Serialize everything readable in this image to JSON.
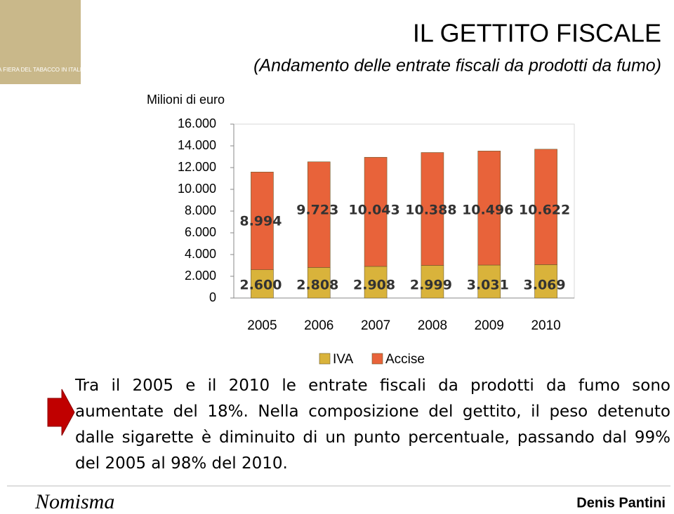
{
  "logo_text": "LA FIERA DEL TABACCO IN ITALIA",
  "chart_data": {
    "type": "stacked_bar",
    "title": "IL GETTITO FISCALE",
    "subtitle": "(Andamento delle entrate fiscali da prodotti da fumo)",
    "ylabel": "Milioni di euro",
    "categories": [
      "2005",
      "2006",
      "2007",
      "2008",
      "2009",
      "2010"
    ],
    "series": [
      {
        "name": "IVA",
        "color": "#d9b33b",
        "values": [
          2600,
          2808,
          2908,
          2999,
          3031,
          3069
        ],
        "value_labels": [
          "2.600",
          "2.808",
          "2.908",
          "2.999",
          "3.031",
          "3.069"
        ]
      },
      {
        "name": "Accise",
        "color": "#e8633a",
        "values": [
          8994,
          9723,
          10043,
          10388,
          10496,
          10622
        ],
        "value_labels": [
          "8.994",
          "9.723",
          "10.043",
          "10.388",
          "10.496",
          "10.622"
        ]
      }
    ],
    "ylim": [
      0,
      16000
    ],
    "yticks": [
      0,
      {
        "value": 2000,
        "label": "2.000"
      },
      {
        "value": 4000,
        "label": "4.000"
      },
      {
        "value": 6000,
        "label": "6.000"
      },
      {
        "value": 8000,
        "label": "8.000"
      },
      {
        "value": 10000,
        "label": "10.000"
      },
      {
        "value": 12000,
        "label": "12.000"
      },
      {
        "value": 14000,
        "label": "14.000"
      },
      {
        "value": 16000,
        "label": "16.000"
      }
    ],
    "grid": false,
    "legend": "bottom"
  },
  "text": "Tra il 2005 e il 2010 le entrate fiscali da prodotti da fumo sono aumentate del 18%. Nella composizione del gettito, il peso detenuto dalle sigarette è diminuito di un punto percentuale, passando dal 99% del 2005 al 98% del 2010.",
  "footer": {
    "logo": "Nomisma",
    "author": "Denis Pantini"
  }
}
